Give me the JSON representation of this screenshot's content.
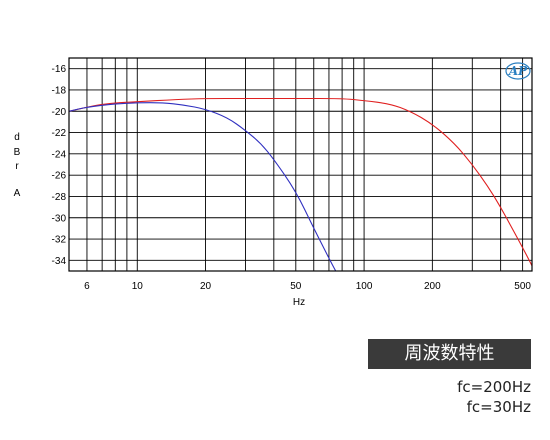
{
  "chart_data": {
    "type": "line",
    "title": "周波数特性",
    "xlabel": "Hz",
    "ylabel": [
      "d",
      "B",
      "r",
      "A"
    ],
    "x_scale": "log",
    "xlim": [
      5,
      550
    ],
    "ylim": [
      -35,
      -15
    ],
    "x_ticks": [
      6,
      10,
      20,
      50,
      100,
      200,
      500
    ],
    "y_ticks": [
      -16,
      -18,
      -20,
      -22,
      -24,
      -26,
      -28,
      -30,
      -32,
      -34
    ],
    "grid": true,
    "logo": "AP",
    "series": [
      {
        "name": "fc=200Hz",
        "color": "#e02020",
        "x": [
          5,
          7,
          10,
          15,
          20,
          30,
          50,
          80,
          100,
          130,
          160,
          200,
          250,
          300,
          350,
          400,
          450,
          500,
          550
        ],
        "y": [
          -20.0,
          -19.3,
          -19.1,
          -18.9,
          -18.8,
          -18.8,
          -18.8,
          -18.8,
          -19.0,
          -19.3,
          -20.0,
          -21.2,
          -23.0,
          -25.0,
          -27.0,
          -29.0,
          -31.0,
          -32.8,
          -34.5
        ]
      },
      {
        "name": "fc=30Hz",
        "color": "#3030c0",
        "x": [
          5,
          6,
          8,
          10,
          13,
          16,
          20,
          25,
          30,
          35,
          40,
          50,
          60,
          70,
          75
        ],
        "y": [
          -20.0,
          -19.6,
          -19.3,
          -19.2,
          -19.2,
          -19.4,
          -19.8,
          -20.6,
          -21.8,
          -23.0,
          -24.5,
          -27.5,
          -31.0,
          -33.8,
          -35.0
        ]
      }
    ]
  },
  "notes": [
    "fc=200Hz",
    "fc=30Hz"
  ]
}
